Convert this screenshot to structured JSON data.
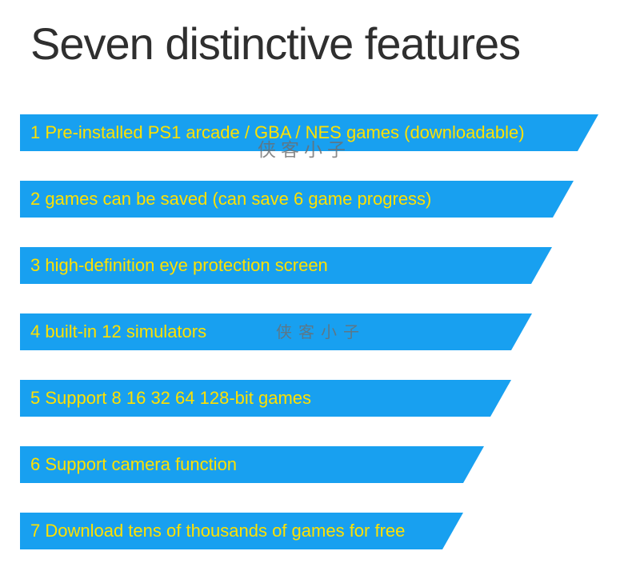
{
  "page": {
    "title": "Seven distinctive features"
  },
  "watermark": {
    "text": "侠客小子"
  },
  "features": [
    {
      "label": "1 Pre-installed PS1 arcade / GBA / NES games (downloadable)"
    },
    {
      "label": "2 games can be saved (can save 6 game progress)"
    },
    {
      "label": "3 high-definition eye protection screen"
    },
    {
      "label": "4 built-in 12 simulators"
    },
    {
      "label": "5 Support 8 16 32 64 128-bit games"
    },
    {
      "label": "6 Support camera function"
    },
    {
      "label": "7 Download tens of thousands of games for free"
    }
  ],
  "colors": {
    "banner": "#18a0f0",
    "banner_text": "#ffe100",
    "title": "#2f2f2f",
    "watermark": "#6e6e6e"
  }
}
